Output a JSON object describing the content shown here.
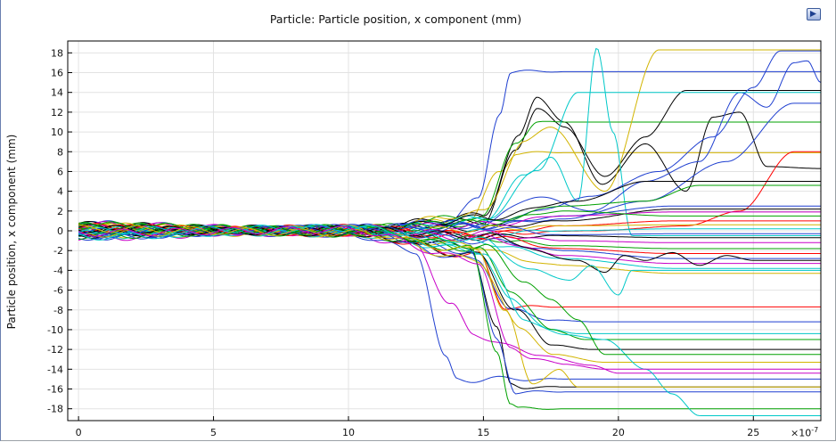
{
  "title": "Particle: Particle position, x component (mm)",
  "chart_data": {
    "type": "line",
    "title": "Particle: Particle position, x component (mm)",
    "ylabel": "Particle position, x component (mm)",
    "xlabel": "",
    "x_scale_label": "×10",
    "x_scale_exponent": "-7",
    "xlim": [
      -0.4,
      27.5
    ],
    "ylim": [
      -19.2,
      19.2
    ],
    "x_ticks": [
      0,
      5,
      10,
      15,
      20,
      25
    ],
    "y_ticks": [
      18,
      16,
      14,
      12,
      10,
      8,
      6,
      4,
      2,
      0,
      -2,
      -4,
      -6,
      -8,
      -10,
      -12,
      -14,
      -16,
      -18
    ],
    "grid": true,
    "legend": "none",
    "colors": [
      "#0000ff",
      "#00a000",
      "#ff0000",
      "#00c8c8",
      "#c800c8",
      "#d2b400",
      "#000000"
    ],
    "series": [
      {
        "color": "#1f3fd0",
        "x": [
          0,
          5,
          10,
          13.5,
          14.8,
          15.6,
          16.0,
          27.5
        ],
        "y": [
          0.6,
          0.2,
          0.3,
          0.8,
          3.0,
          12.0,
          16.1,
          16.1
        ]
      },
      {
        "color": "#c800c8",
        "x": [
          0,
          5,
          10,
          12.5,
          13.8,
          14.6,
          17.0,
          19.0,
          20.0,
          27.5
        ],
        "y": [
          0.2,
          -0.2,
          -0.3,
          -1.5,
          -7.5,
          -10.5,
          -12.5,
          -13.6,
          -14.4,
          -14.4
        ]
      },
      {
        "color": "#1f3fd0",
        "x": [
          0,
          5,
          10,
          12.5,
          13.6,
          14.0,
          27.5
        ],
        "y": [
          -0.2,
          0.1,
          -0.3,
          -2.0,
          -13.0,
          -15.0,
          -15.0
        ]
      },
      {
        "color": "#d2b400",
        "x": [
          0,
          5,
          10,
          14.5,
          15.6,
          16.2,
          27.5
        ],
        "y": [
          0.4,
          -0.1,
          0.2,
          1.0,
          6.0,
          7.9,
          7.9
        ]
      },
      {
        "color": "#000000",
        "x": [
          0,
          10,
          15.0,
          16.3,
          17.0,
          18.0,
          19.4,
          21.0,
          22.5,
          23.5,
          24.5,
          25.5,
          27.5
        ],
        "y": [
          0.3,
          0.2,
          1.5,
          9.5,
          13.5,
          11.0,
          4.7,
          8.8,
          4.0,
          11.5,
          12.0,
          6.5,
          6.3
        ]
      },
      {
        "color": "#000000",
        "x": [
          0,
          10,
          15.0,
          16.2,
          17.0,
          18.0,
          19.5,
          21.0,
          22.5,
          25.0,
          27.5
        ],
        "y": [
          -0.3,
          0.1,
          1.0,
          8.0,
          12.5,
          10.5,
          5.5,
          9.5,
          14.2,
          14.2,
          14.2
        ]
      },
      {
        "color": "#00a000",
        "x": [
          0,
          10,
          15.0,
          16.2,
          17.0,
          27.5
        ],
        "y": [
          0.5,
          0.1,
          1.5,
          9.0,
          11.0,
          11.0
        ]
      },
      {
        "color": "#d2b400",
        "x": [
          0,
          10,
          15.0,
          16.5,
          17.5,
          19.5,
          21.5,
          27.5
        ],
        "y": [
          -0.4,
          -0.1,
          1.8,
          9.0,
          10.5,
          4.0,
          18.3,
          18.3
        ]
      },
      {
        "color": "#00c8c8",
        "x": [
          0,
          10,
          15.0,
          16.5,
          17.5,
          18.5,
          19.2,
          19.8,
          20.5,
          27.5
        ],
        "y": [
          0.1,
          -0.2,
          1.2,
          5.5,
          7.5,
          3.0,
          18.5,
          10.0,
          -0.5,
          -0.5
        ]
      },
      {
        "color": "#1f3fd0",
        "x": [
          0,
          10,
          15.0,
          17.0,
          19.0,
          21.0,
          23.0,
          24.5,
          25.5,
          26.5,
          27.0,
          27.5
        ],
        "y": [
          -0.5,
          0.2,
          0.8,
          3.5,
          2.0,
          5.0,
          7.0,
          14.0,
          12.5,
          17.0,
          17.2,
          15.0
        ]
      },
      {
        "color": "#1f3fd0",
        "x": [
          0,
          10,
          15.0,
          17.0,
          19.0,
          21.5,
          23.5,
          25.0,
          26.0,
          27.5
        ],
        "y": [
          0.7,
          -0.2,
          0.6,
          2.0,
          3.5,
          6.0,
          9.5,
          14.5,
          18.2,
          18.2
        ]
      },
      {
        "color": "#00c8c8",
        "x": [
          0,
          10,
          15.0,
          17.0,
          18.5,
          27.5
        ],
        "y": [
          0.2,
          0.1,
          1.0,
          6.0,
          14.0,
          14.0
        ]
      },
      {
        "color": "#1f3fd0",
        "x": [
          0,
          10,
          15.0,
          18.0,
          21.0,
          24.0,
          26.5,
          27.5
        ],
        "y": [
          -0.6,
          0.3,
          0.5,
          1.2,
          3.0,
          7.0,
          12.9,
          12.9
        ]
      },
      {
        "color": "#ff0000",
        "x": [
          0,
          10,
          15.0,
          19.0,
          22.5,
          24.5,
          26.5,
          27.5
        ],
        "y": [
          0.3,
          -0.3,
          -0.3,
          0.0,
          0.5,
          2.0,
          8.0,
          8.0
        ]
      },
      {
        "color": "#00a000",
        "x": [
          0,
          10,
          15.0,
          18.0,
          21.0,
          23.0,
          27.5
        ],
        "y": [
          -0.1,
          0.2,
          0.8,
          2.5,
          3.0,
          4.6,
          4.6
        ]
      },
      {
        "color": "#000000",
        "x": [
          0,
          10,
          15.0,
          18.5,
          21.0,
          27.5
        ],
        "y": [
          0.6,
          -0.2,
          1.3,
          3.0,
          5.0,
          5.0
        ]
      },
      {
        "color": "#1f3fd0",
        "x": [
          0,
          10,
          15.0,
          18.0,
          22.0,
          27.5
        ],
        "y": [
          -0.3,
          0.1,
          0.5,
          1.5,
          2.5,
          2.5
        ]
      },
      {
        "color": "#000000",
        "x": [
          0,
          10,
          15.0,
          18.0,
          22.0,
          27.5
        ],
        "y": [
          0.2,
          -0.1,
          0.3,
          1.0,
          2.2,
          2.2
        ]
      },
      {
        "color": "#c800c8",
        "x": [
          0,
          10,
          15.0,
          18.0,
          22.0,
          27.5
        ],
        "y": [
          -0.7,
          0.2,
          0.6,
          1.5,
          1.9,
          1.9
        ]
      },
      {
        "color": "#00a000",
        "x": [
          0,
          10,
          15.0,
          18.0,
          22.0,
          27.5
        ],
        "y": [
          0.5,
          0.0,
          0.8,
          2.0,
          1.5,
          1.5
        ]
      },
      {
        "color": "#ff0000",
        "x": [
          0,
          10,
          15.0,
          18.0,
          22.0,
          27.5
        ],
        "y": [
          -0.2,
          0.3,
          -0.4,
          0.5,
          1.0,
          1.0
        ]
      },
      {
        "color": "#d2b400",
        "x": [
          0,
          10,
          15.0,
          18.0,
          22.0,
          27.5
        ],
        "y": [
          0.4,
          -0.2,
          0.2,
          0.5,
          0.6,
          0.6
        ]
      },
      {
        "color": "#00c8c8",
        "x": [
          0,
          10,
          15.0,
          18.0,
          22.0,
          27.5
        ],
        "y": [
          -0.5,
          0.1,
          -0.2,
          0.0,
          0.2,
          0.2
        ]
      },
      {
        "color": "#1f3fd0",
        "x": [
          0,
          10,
          15.0,
          18.0,
          22.0,
          27.5
        ],
        "y": [
          0.1,
          -0.3,
          0.4,
          -0.4,
          -0.3,
          -0.3
        ]
      },
      {
        "color": "#000000",
        "x": [
          0,
          10,
          15.0,
          18.0,
          22.0,
          27.5
        ],
        "y": [
          -0.4,
          0.2,
          -0.6,
          -0.5,
          -0.7,
          -0.7
        ]
      },
      {
        "color": "#c800c8",
        "x": [
          0,
          10,
          15.0,
          18.0,
          22.0,
          27.5
        ],
        "y": [
          0.6,
          0.0,
          -0.3,
          -1.0,
          -1.2,
          -1.2
        ]
      },
      {
        "color": "#00a000",
        "x": [
          0,
          10,
          15.0,
          18.0,
          22.0,
          27.5
        ],
        "y": [
          -0.1,
          0.2,
          -0.8,
          -1.5,
          -1.8,
          -1.8
        ]
      },
      {
        "color": "#ff0000",
        "x": [
          0,
          10,
          15.0,
          18.0,
          22.0,
          27.5
        ],
        "y": [
          0.3,
          -0.1,
          -0.5,
          -1.8,
          -2.3,
          -2.3
        ]
      },
      {
        "color": "#1f3fd0",
        "x": [
          0,
          10,
          15.0,
          18.0,
          22.0,
          27.5
        ],
        "y": [
          -0.6,
          0.3,
          -1.0,
          -2.0,
          -2.8,
          -2.8
        ]
      },
      {
        "color": "#c800c8",
        "x": [
          0,
          10,
          15.0,
          18.0,
          22.0,
          27.5
        ],
        "y": [
          0.2,
          -0.2,
          -0.7,
          -2.5,
          -3.3,
          -3.3
        ]
      },
      {
        "color": "#00c8c8",
        "x": [
          0,
          10,
          15.0,
          18.0,
          22.0,
          27.5
        ],
        "y": [
          -0.3,
          0.1,
          -1.2,
          -2.8,
          -3.8,
          -3.8
        ]
      },
      {
        "color": "#d2b400",
        "x": [
          0,
          10,
          14.8,
          16.5,
          18.0,
          22.0,
          27.5
        ],
        "y": [
          0.5,
          -0.3,
          -1.5,
          -3.0,
          -3.5,
          -4.3,
          -4.3
        ]
      },
      {
        "color": "#000000",
        "x": [
          0,
          10,
          15.0,
          18.5,
          19.5,
          20.2,
          21.0,
          22.0,
          23.0,
          24.0,
          25.0,
          27.5
        ],
        "y": [
          -0.2,
          0.1,
          -0.5,
          -3.0,
          -4.2,
          -2.5,
          -3.0,
          -2.2,
          -3.5,
          -2.5,
          -3.0,
          -3.0
        ]
      },
      {
        "color": "#ff0000",
        "x": [
          0,
          10,
          14.8,
          15.8,
          16.5,
          27.5
        ],
        "y": [
          0.4,
          -0.2,
          -2.5,
          -7.7,
          -7.7,
          -7.7
        ]
      },
      {
        "color": "#1f3fd0",
        "x": [
          0,
          10,
          14.8,
          16.0,
          17.5,
          19.0,
          20.0,
          27.5
        ],
        "y": [
          -0.4,
          0.2,
          -3.0,
          -8.0,
          -9.0,
          -9.2,
          -9.2,
          -9.2
        ]
      },
      {
        "color": "#00c8c8",
        "x": [
          0,
          10,
          14.8,
          16.0,
          17.5,
          18.5,
          27.5
        ],
        "y": [
          0.1,
          -0.3,
          -2.0,
          -7.0,
          -10.0,
          -10.4,
          -10.4
        ]
      },
      {
        "color": "#00a000",
        "x": [
          0,
          10,
          14.8,
          16.0,
          17.5,
          18.8,
          27.5
        ],
        "y": [
          -0.5,
          0.3,
          -1.8,
          -6.0,
          -10.0,
          -11.0,
          -11.0
        ]
      },
      {
        "color": "#000000",
        "x": [
          0,
          10,
          14.8,
          16.2,
          17.5,
          19.0,
          27.5
        ],
        "y": [
          0.3,
          -0.1,
          -2.5,
          -8.0,
          -11.5,
          -12.0,
          -12.0
        ]
      },
      {
        "color": "#d2b400",
        "x": [
          0,
          10,
          14.8,
          16.4,
          17.6,
          19.5,
          27.5
        ],
        "y": [
          -0.3,
          0.2,
          -3.0,
          -10.0,
          -12.5,
          -13.3,
          -13.3
        ]
      },
      {
        "color": "#000000",
        "x": [
          0,
          10,
          14.5,
          15.5,
          16.0,
          16.5,
          27.5
        ],
        "y": [
          0.2,
          -0.2,
          -1.5,
          -10.0,
          -15.5,
          -15.8,
          -15.8
        ]
      },
      {
        "color": "#1f3fd0",
        "x": [
          0,
          10,
          14.5,
          15.5,
          16.2,
          27.5
        ],
        "y": [
          -0.1,
          0.1,
          -2.0,
          -11.0,
          -16.3,
          -16.3
        ]
      },
      {
        "color": "#00a000",
        "x": [
          0,
          10,
          14.5,
          15.5,
          16.0,
          16.3,
          27.5
        ],
        "y": [
          0.4,
          -0.3,
          -1.8,
          -12.0,
          -17.5,
          -18.0,
          -18.0
        ]
      },
      {
        "color": "#00c8c8",
        "x": [
          0,
          10,
          15.0,
          16.5,
          18.0,
          19.5,
          21.0,
          22.0,
          23.0,
          27.5
        ],
        "y": [
          -0.6,
          0.2,
          -2.0,
          -9.0,
          -10.5,
          -11.0,
          -14.0,
          -16.5,
          -18.7,
          -18.7
        ]
      },
      {
        "color": "#00a000",
        "x": [
          0,
          10,
          15.0,
          16.5,
          17.5,
          18.5,
          19.5,
          27.5
        ],
        "y": [
          0.6,
          -0.1,
          -1.5,
          -5.0,
          -7.0,
          -9.0,
          -12.5,
          -12.5
        ]
      },
      {
        "color": "#00c8c8",
        "x": [
          0,
          10,
          15.0,
          16.8,
          18.2,
          19.0,
          20.0,
          20.5,
          27.5
        ],
        "y": [
          0.0,
          0.3,
          -1.0,
          -4.0,
          -5.0,
          -3.5,
          -6.5,
          -4.0,
          -4.0
        ]
      },
      {
        "color": "#d2b400",
        "x": [
          0,
          10,
          14.8,
          15.8,
          16.8,
          17.8,
          18.5,
          27.5
        ],
        "y": [
          0.2,
          -0.2,
          -2.0,
          -8.0,
          -15.5,
          -14.0,
          -15.8,
          -15.8
        ]
      },
      {
        "color": "#c800c8",
        "x": [
          0,
          10,
          14.8,
          16.0,
          16.8,
          18.0,
          19.5,
          27.5
        ],
        "y": [
          -0.2,
          0.1,
          -3.0,
          -12.0,
          -12.8,
          -13.5,
          -14.0,
          -14.0
        ]
      }
    ]
  }
}
